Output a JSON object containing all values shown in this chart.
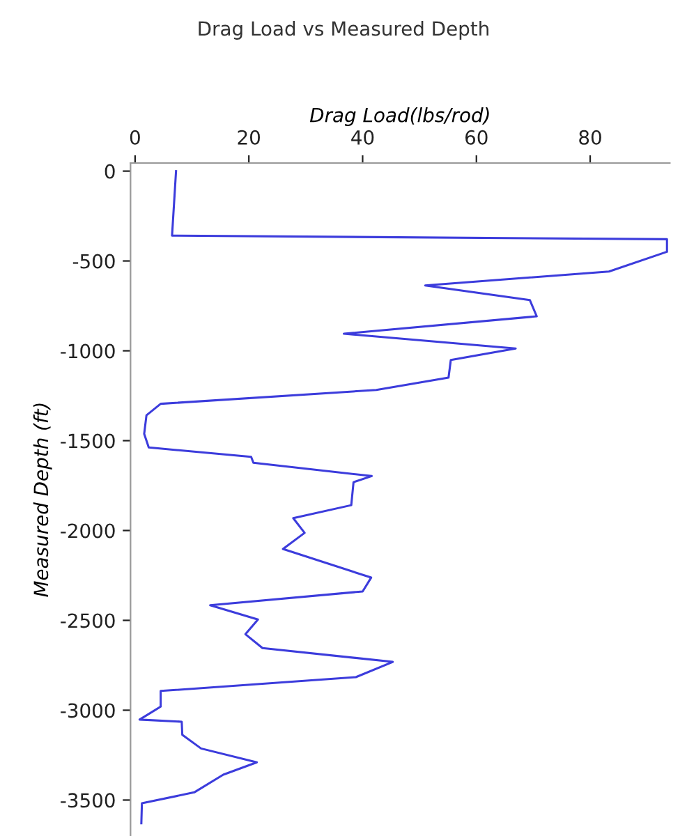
{
  "chart_data": {
    "type": "line",
    "title": "Drag Load vs Measured Depth",
    "xlabel": "Drag Load(lbs/rod)",
    "ylabel": "Measured Depth (ft)",
    "xlim": [
      -0.8,
      94
    ],
    "xticks": [
      0,
      20,
      40,
      60,
      80
    ],
    "ylim": [
      -3700,
      45
    ],
    "yticks": [
      0,
      -500,
      -1000,
      -1500,
      -2000,
      -2500,
      -3000,
      -3500
    ],
    "grid": false,
    "legend": false,
    "marker": "none",
    "line_style": "solid",
    "series": [
      {
        "color": "#3c3cdc",
        "x": [
          7.2,
          6.5,
          93.5,
          93.5,
          83.3,
          51,
          69.4,
          70.6,
          36.7,
          66.9,
          55.5,
          55.1,
          42.4,
          4.5,
          2,
          1.6,
          2.4,
          20.4,
          20.8,
          41.6,
          38.4,
          38,
          27.8,
          29.8,
          26,
          41.5,
          40,
          13.2,
          21.6,
          19.4,
          22.4,
          45.3,
          38.8,
          4.5,
          4.5,
          0.8,
          8.2,
          8.3,
          11.6,
          21.4,
          15.5,
          10.4,
          1.2,
          1.1
        ],
        "values": [
          0,
          -359,
          -379,
          -449,
          -559,
          -636,
          -718,
          -808,
          -905,
          -987,
          -1051,
          -1149,
          -1218,
          -1295,
          -1359,
          -1462,
          -1538,
          -1590,
          -1623,
          -1697,
          -1731,
          -1859,
          -1931,
          -2013,
          -2103,
          -2262,
          -2339,
          -2416,
          -2495,
          -2577,
          -2654,
          -2731,
          -2816,
          -2893,
          -2980,
          -3052,
          -3064,
          -3137,
          -3213,
          -3290,
          -3359,
          -3457,
          -3518,
          -3629
        ]
      }
    ]
  }
}
